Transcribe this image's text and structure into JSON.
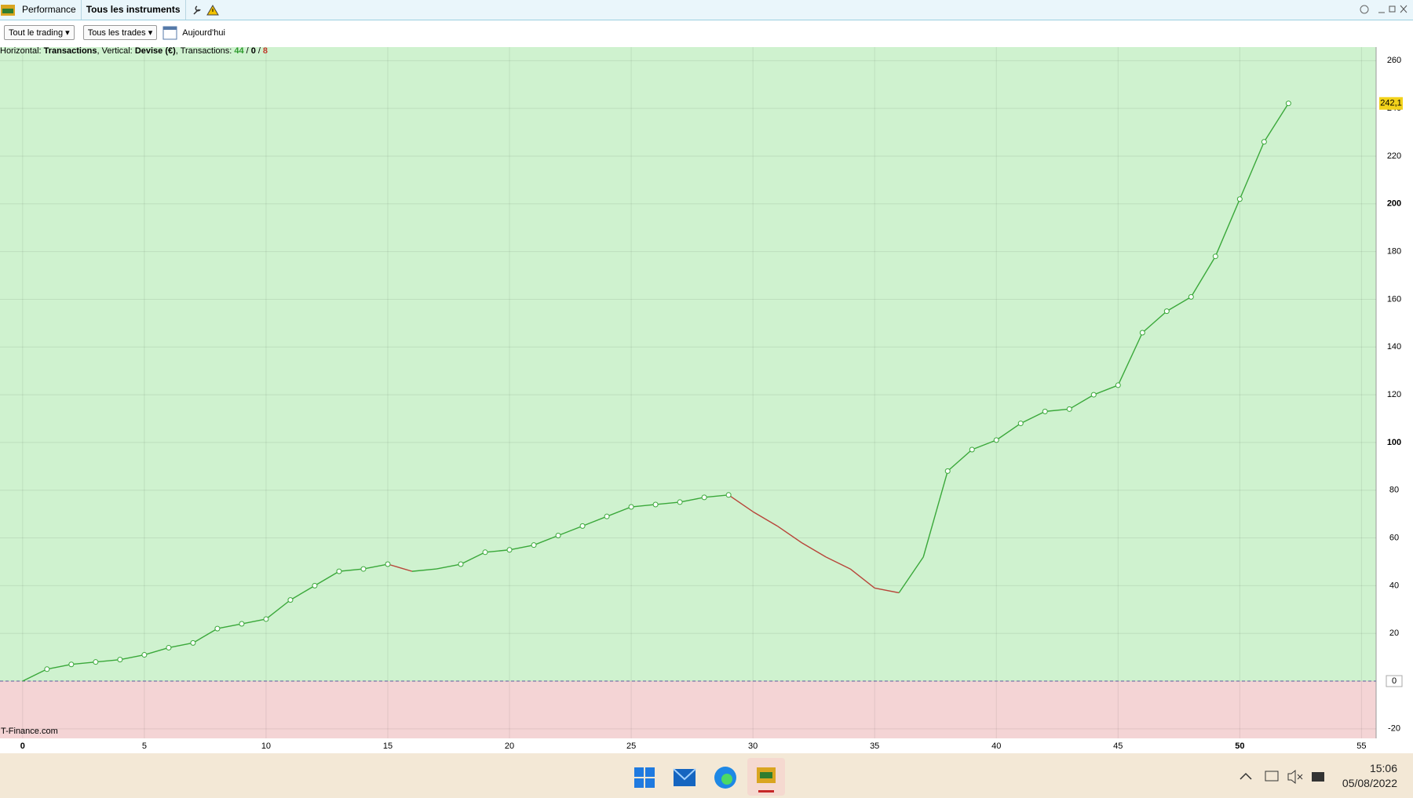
{
  "window": {
    "tabs": [
      "Performance",
      "Tous les instruments"
    ]
  },
  "toolbar": {
    "filters": [
      "Tout le trading",
      "Tous les trades"
    ],
    "date": "Aujourd'hui"
  },
  "chart_data": {
    "type": "line",
    "info": {
      "h_label": "Horizontal:",
      "h_value": "Transactions",
      "v_label": ", Vertical:",
      "v_value": "Devise (€)",
      "t_label": ", Transactions:",
      "wins": 44,
      "neutral": 0,
      "losses": 8,
      "separator": "/"
    },
    "x": [
      0,
      1,
      2,
      3,
      4,
      5,
      6,
      7,
      8,
      9,
      10,
      11,
      12,
      13,
      14,
      15,
      16,
      17,
      18,
      19,
      20,
      21,
      22,
      23,
      24,
      25,
      26,
      27,
      28,
      29,
      30,
      31,
      32,
      33,
      34,
      35,
      36,
      37,
      38,
      39,
      40,
      41,
      42,
      43,
      44,
      45,
      46,
      47,
      48,
      49,
      50,
      51,
      52
    ],
    "values": [
      0,
      5,
      7,
      8,
      9,
      11,
      14,
      16,
      22,
      24,
      26,
      34,
      40,
      46,
      47,
      49,
      46,
      47,
      49,
      54,
      55,
      57,
      61,
      65,
      69,
      73,
      74,
      75,
      77,
      78,
      71,
      65,
      58,
      52,
      47,
      39,
      37,
      52,
      88,
      97,
      101,
      108,
      113,
      114,
      120,
      124,
      146,
      155,
      161,
      178,
      202,
      226,
      242.1
    ],
    "rise_color": "#3aa83a",
    "fall_color": "#b8453a",
    "xlim": [
      -0.93,
      55.6
    ],
    "xticks": [
      0,
      5,
      10,
      15,
      20,
      25,
      30,
      35,
      40,
      45,
      50,
      55
    ],
    "ylim": [
      -24,
      265.7
    ],
    "yticks": [
      -20,
      0,
      20,
      40,
      60,
      80,
      100,
      120,
      140,
      160,
      180,
      200,
      220,
      240,
      260
    ],
    "grid": true,
    "last_value": {
      "value": 242.1,
      "label": "242,1"
    },
    "watermark": "T-Finance.com"
  },
  "taskbar": {
    "time": "15:06",
    "date": "05/08/2022"
  }
}
